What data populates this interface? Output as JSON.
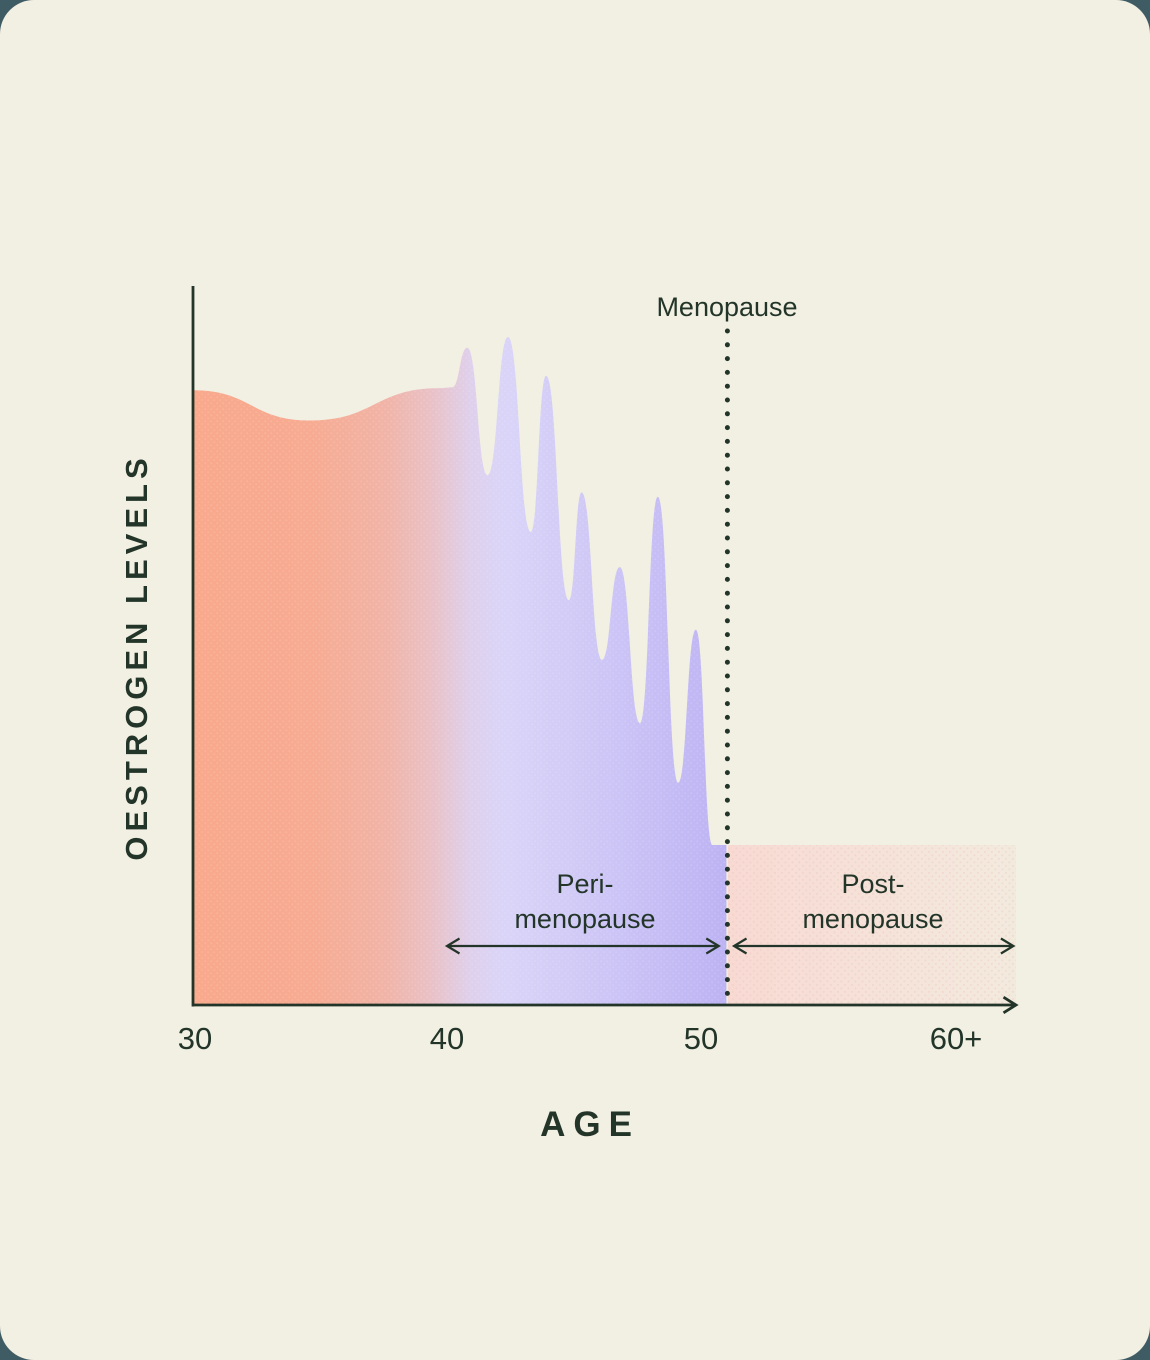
{
  "colors": {
    "page_background": "#3F5B63",
    "card_background": "#F2EFE3",
    "ink": "#233529",
    "area_orange": "#F9A98C",
    "area_lavender": "#DAD5F8",
    "area_purple_deep": "#BDB3F4",
    "post_region_pink": "#F8DAD3"
  },
  "labels": {
    "y_axis": "OESTROGEN LEVELS",
    "x_axis": "AGE",
    "menopause": "Menopause",
    "peri_line1": "Peri-",
    "peri_line2": "menopause",
    "post_line1": "Post-",
    "post_line2": "menopause",
    "ticks": [
      "30",
      "40",
      "50",
      "60+"
    ]
  },
  "chart_data": {
    "type": "area",
    "title": "",
    "xlabel": "AGE",
    "ylabel": "OESTROGEN LEVELS",
    "x_tick_labels": [
      "30",
      "40",
      "50",
      "60+"
    ],
    "x_tick_ages": [
      30,
      40,
      50,
      60
    ],
    "x_range": [
      30,
      62.4
    ],
    "y_range": [
      0,
      100
    ],
    "grid": false,
    "legend": "none",
    "series": [
      {
        "name": "oestrogen-level",
        "points": [
          [
            30,
            85.5
          ],
          [
            34.6,
            81.3
          ],
          [
            39.7,
            85.8
          ],
          [
            40.2,
            85.9
          ],
          [
            40.8,
            91.4
          ],
          [
            41.6,
            73.7
          ],
          [
            42.4,
            92.9
          ],
          [
            43.3,
            65.8
          ],
          [
            43.9,
            87.5
          ],
          [
            44.8,
            56.3
          ],
          [
            45.3,
            71.3
          ],
          [
            46.1,
            48.0
          ],
          [
            46.8,
            60.9
          ],
          [
            47.6,
            39.2
          ],
          [
            48.3,
            70.7
          ],
          [
            49.1,
            30.9
          ],
          [
            49.8,
            52.2
          ],
          [
            50.45,
            22.25
          ],
          [
            51,
            22.25
          ]
        ]
      }
    ],
    "annotations": [
      {
        "id": "menopause-line",
        "label": "Menopause",
        "age": 51,
        "style": "dotted-vertical-line"
      },
      {
        "id": "peri",
        "label": "Peri-menopause",
        "age_span": [
          40,
          50.7
        ]
      },
      {
        "id": "post",
        "label": "Post-menopause",
        "age_span": [
          51.3,
          62.3
        ],
        "region_level": 22.25
      }
    ]
  }
}
